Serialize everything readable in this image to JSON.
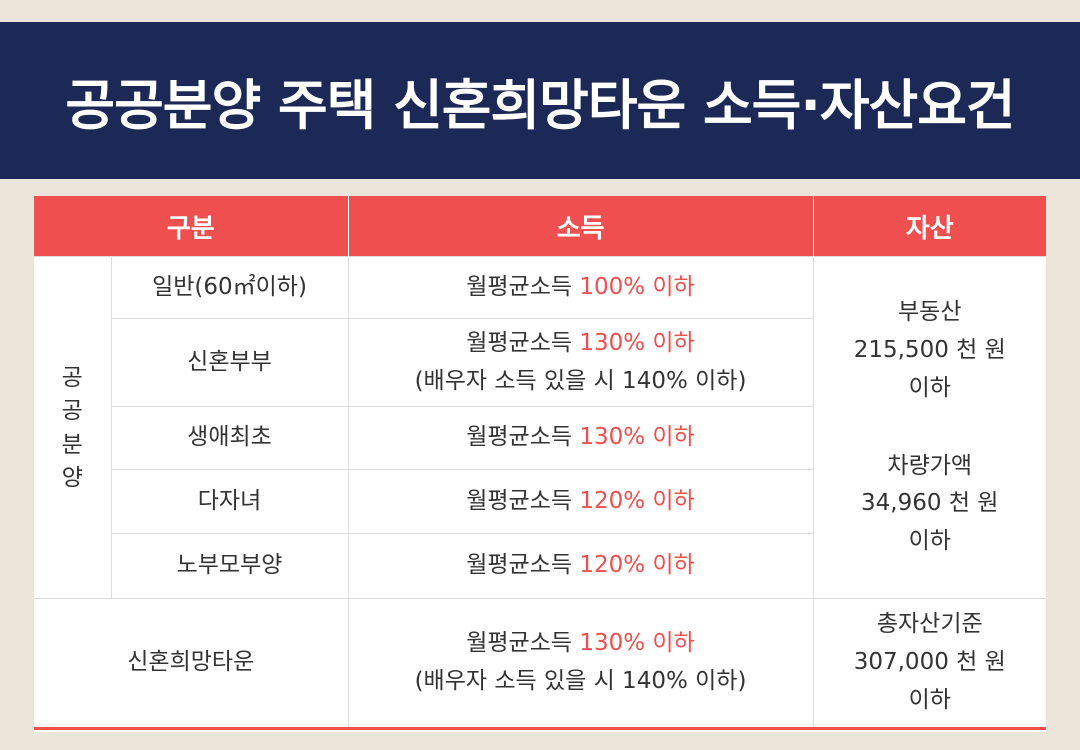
{
  "title": "공공분양 주택 신혼희망타운 소득·자산요건",
  "headers": {
    "category": "구분",
    "income": "소득",
    "assets": "자산"
  },
  "group_label_chars": [
    "공",
    "공",
    "분",
    "양"
  ],
  "rows": [
    {
      "name": "일반(60㎡이하)",
      "income_prefix": "월평균소득",
      "income_limit": "100% 이하",
      "income_note": ""
    },
    {
      "name": "신혼부부",
      "income_prefix": "월평균소득",
      "income_limit": "130% 이하",
      "income_note": "(배우자 소득 있을 시 140% 이하)"
    },
    {
      "name": "생애최초",
      "income_prefix": "월평균소득",
      "income_limit": "130% 이하",
      "income_note": ""
    },
    {
      "name": "다자녀",
      "income_prefix": "월평균소득",
      "income_limit": "120% 이하",
      "income_note": ""
    },
    {
      "name": "노부모부양",
      "income_prefix": "월평균소득",
      "income_limit": "120% 이하",
      "income_note": ""
    }
  ],
  "public_assets": {
    "real_estate": {
      "label": "부동산",
      "amount": "215,500 천 원",
      "suffix": "이하"
    },
    "vehicle": {
      "label": "차량가액",
      "amount": "34,960 천 원",
      "suffix": "이하"
    }
  },
  "newlywed_town": {
    "name": "신혼희망타운",
    "income_prefix": "월평균소득",
    "income_limit": "130% 이하",
    "income_note": "(배우자 소득 있을 시 140% 이하)",
    "assets": {
      "label": "총자산기준",
      "amount": "307,000 천 원",
      "suffix": "이하"
    }
  },
  "colors": {
    "header_bg": "#f04f4f",
    "title_bg": "#1c2856",
    "highlight": "#f04f4f"
  }
}
